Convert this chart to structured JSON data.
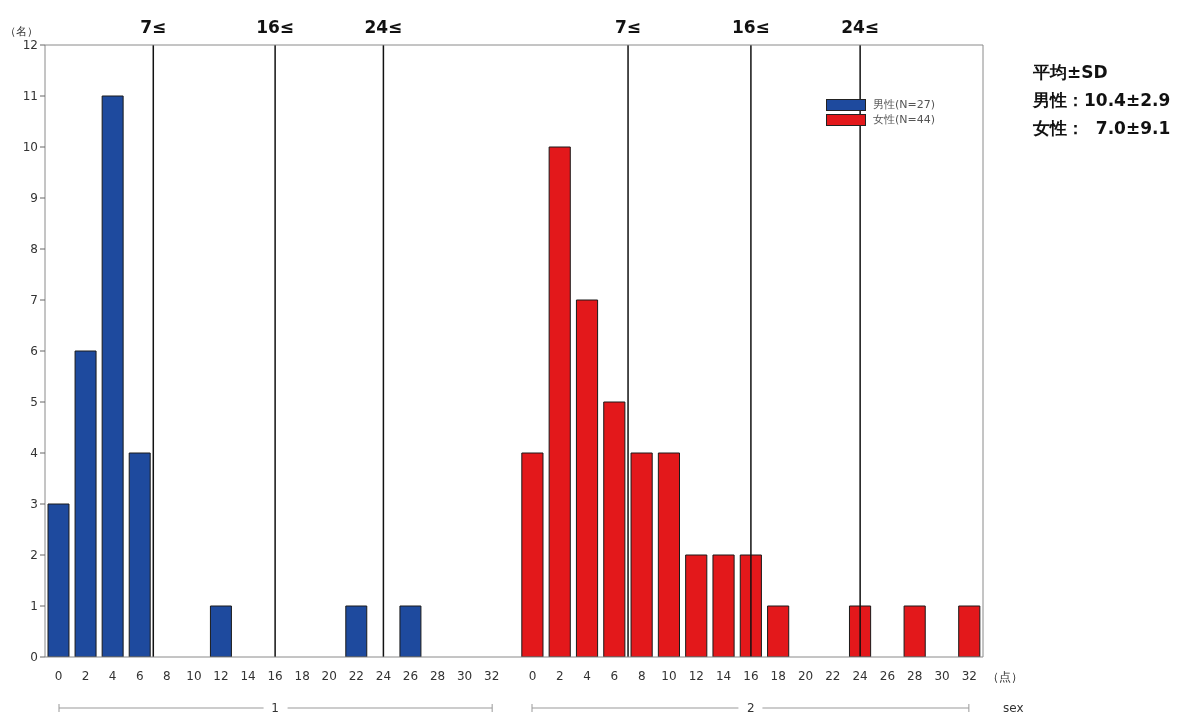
{
  "chart_data": [
    {
      "type": "bar",
      "x": [
        0,
        2,
        4,
        6,
        8,
        10,
        12,
        14,
        16,
        18,
        20,
        22,
        24,
        26,
        28,
        30,
        32
      ],
      "xlim": [
        -1,
        33.5
      ],
      "xticks": [
        0,
        2,
        4,
        6,
        8,
        10,
        12,
        14,
        16,
        18,
        20,
        22,
        24,
        26,
        28,
        30,
        32
      ],
      "ylim": [
        0,
        12
      ],
      "yticks": [
        0,
        1,
        2,
        3,
        4,
        5,
        6,
        7,
        8,
        9,
        10,
        11,
        12
      ],
      "ylabel": "（名）",
      "xlabel": "1",
      "series": [
        {
          "color": "#1e4a9e",
          "values": [
            3,
            6,
            11,
            4,
            0,
            0,
            1,
            0,
            0,
            0,
            0,
            1,
            0,
            1,
            0,
            0,
            0
          ]
        }
      ],
      "ref_lines": [
        {
          "axis": "x",
          "value": 7,
          "label": "7≤"
        },
        {
          "axis": "x",
          "value": 16,
          "label": "16≤"
        },
        {
          "axis": "x",
          "value": 24,
          "label": "24≤"
        }
      ]
    },
    {
      "type": "bar",
      "x": [
        0,
        2,
        4,
        6,
        8,
        10,
        12,
        14,
        16,
        18,
        20,
        22,
        24,
        26,
        28,
        30,
        32
      ],
      "xlim": [
        -1.5,
        33
      ],
      "xticks": [
        0,
        2,
        4,
        6,
        8,
        10,
        12,
        14,
        16,
        18,
        20,
        22,
        24,
        26,
        28,
        30,
        32
      ],
      "ylim": [
        0,
        12
      ],
      "yticks": [
        0,
        1,
        2,
        3,
        4,
        5,
        6,
        7,
        8,
        9,
        10,
        11,
        12
      ],
      "tick_labels": "x",
      "xlabel": "2",
      "series": [
        {
          "name": "男性(N=27)",
          "color": "#1e4a9e",
          "values": [
            null,
            null,
            null,
            null,
            null,
            null,
            null,
            null,
            null,
            null,
            null,
            null,
            null,
            null,
            null,
            null,
            null
          ]
        },
        {
          "name": "女性(N=44)",
          "color": "#e3181b",
          "values": [
            4,
            10,
            7,
            5,
            4,
            4,
            2,
            2,
            2,
            1,
            0,
            0,
            1,
            0,
            1,
            0,
            1
          ]
        }
      ],
      "ref_lines": [
        {
          "axis": "x",
          "value": 7,
          "label": "7≤"
        },
        {
          "axis": "x",
          "value": 16,
          "label": "16≤"
        },
        {
          "axis": "x",
          "value": 24,
          "label": "24≤"
        }
      ],
      "legend": "top right",
      "annotations": [
        "（点）",
        "sex"
      ]
    },
    {
      "type": "other",
      "annotations": [
        "平均±SD",
        "男性：10.4±2.9",
        "女性：  7.0±9.1"
      ]
    }
  ]
}
